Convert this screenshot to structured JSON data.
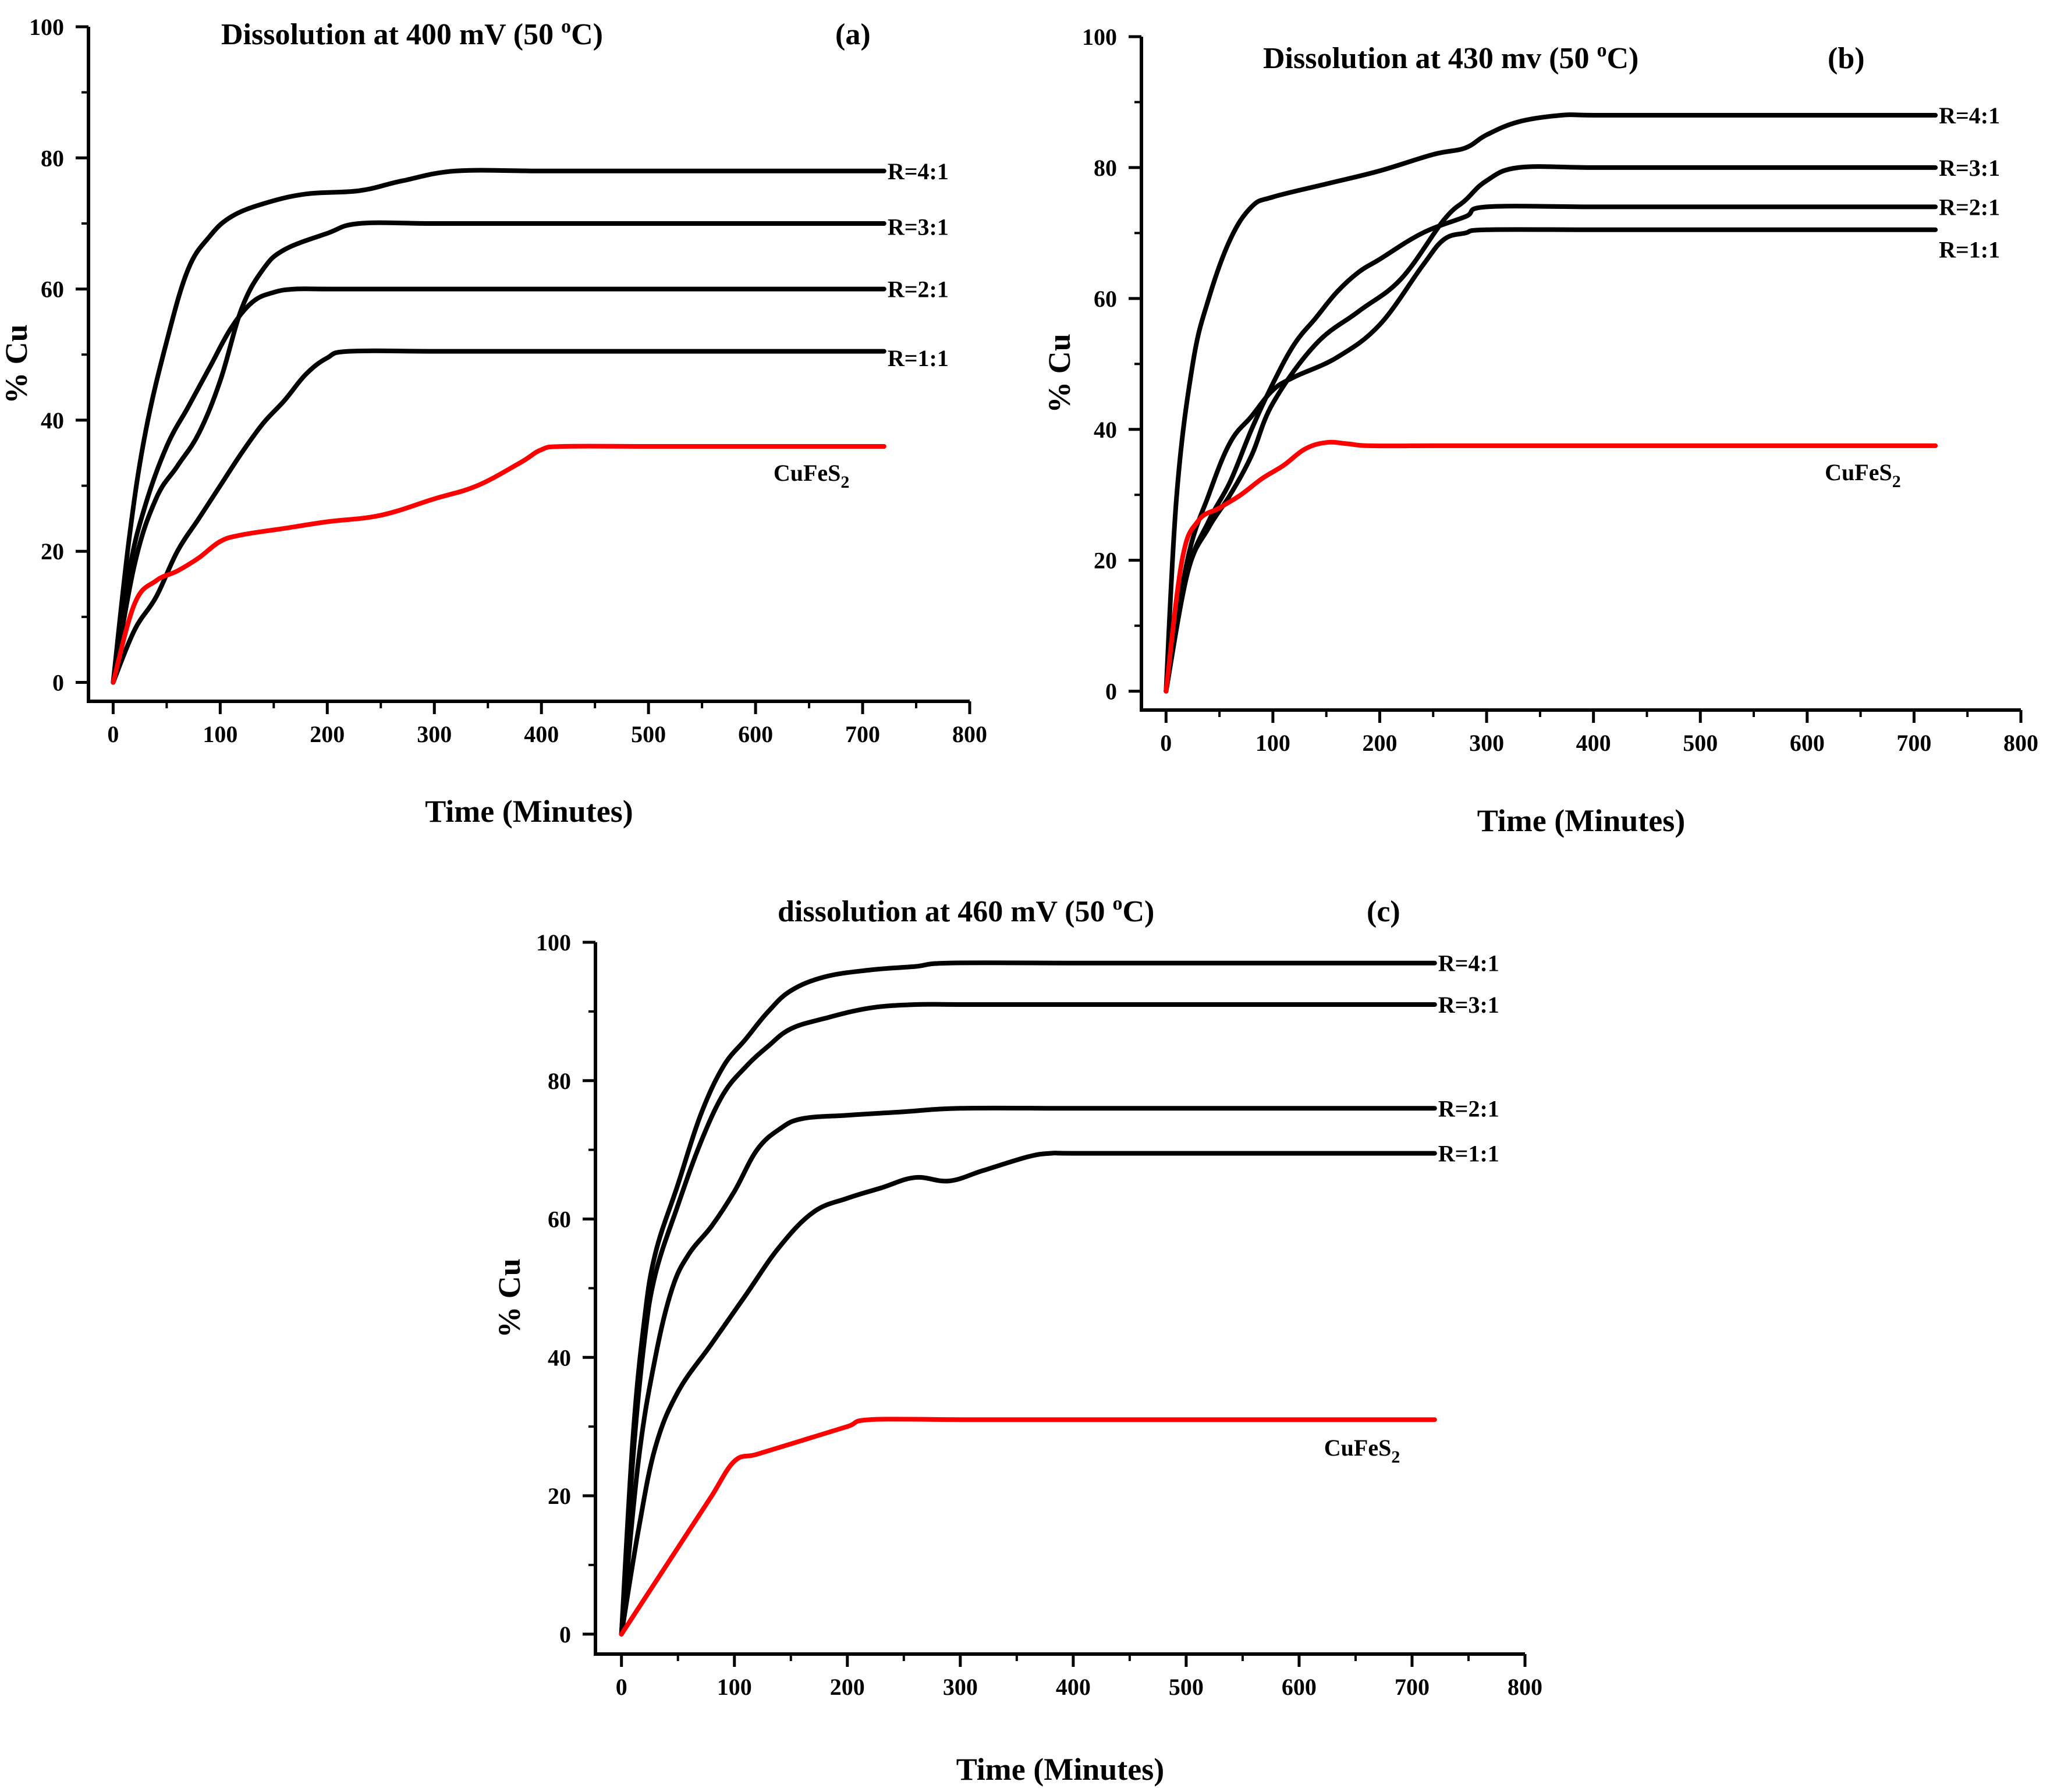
{
  "chart_data": [
    {
      "type": "line",
      "panel_label": "(a)",
      "title": "Dissolution at 400 mV (50",
      "title_sup": "o",
      "title_tail": "C)",
      "xlabel": "Time (Minutes)",
      "ylabel": "% Cu",
      "xlim": [
        0,
        800
      ],
      "ylim": [
        0,
        100
      ],
      "xticks": [
        0,
        100,
        200,
        300,
        400,
        500,
        600,
        700,
        800
      ],
      "yticks": [
        0,
        20,
        40,
        60,
        80,
        100
      ],
      "grid": false,
      "series": [
        {
          "name": "R=4:1",
          "color": "#000000",
          "x": [
            0,
            15,
            30,
            50,
            70,
            90,
            110,
            140,
            180,
            230,
            270,
            320,
            400,
            500,
            600,
            720
          ],
          "y": [
            0,
            22,
            38,
            52,
            63,
            68,
            71,
            73,
            74.5,
            75,
            76.5,
            78,
            78,
            78,
            78,
            78
          ]
        },
        {
          "name": "R=3:1",
          "color": "#000000",
          "x": [
            0,
            20,
            40,
            60,
            80,
            100,
            120,
            140,
            160,
            200,
            230,
            300,
            400,
            500,
            600,
            720
          ],
          "y": [
            0,
            18,
            28,
            33,
            38,
            46,
            57,
            63,
            66,
            68.5,
            70,
            70,
            70,
            70,
            70,
            70
          ],
          "label_y": 69.5
        },
        {
          "name": "R=2:1",
          "color": "#000000",
          "x": [
            0,
            15,
            30,
            50,
            70,
            90,
            110,
            130,
            150,
            170,
            200,
            300,
            400,
            500,
            600,
            720
          ],
          "y": [
            0,
            17,
            27,
            36,
            42,
            48,
            54,
            58,
            59.5,
            60,
            60,
            60,
            60,
            60,
            60,
            60
          ]
        },
        {
          "name": "R=1:1",
          "color": "#000000",
          "x": [
            0,
            20,
            40,
            60,
            80,
            100,
            120,
            140,
            160,
            180,
            200,
            220,
            300,
            400,
            500,
            600,
            720
          ],
          "y": [
            0,
            8,
            13,
            20,
            25,
            30,
            35,
            39.5,
            43,
            47,
            49.5,
            50.5,
            50.5,
            50.5,
            50.5,
            50.5,
            50.5
          ],
          "label_y": 49.5
        },
        {
          "name": "CuFeS",
          "name_sub": "2",
          "color": "#ff0000",
          "x": [
            0,
            20,
            40,
            60,
            80,
            100,
            120,
            160,
            200,
            250,
            300,
            340,
            380,
            400,
            420,
            500,
            600,
            720
          ],
          "y": [
            0,
            12,
            15.5,
            17,
            19,
            21.5,
            22.5,
            23.5,
            24.5,
            25.5,
            28,
            30,
            33.5,
            35.5,
            36,
            36,
            36,
            36
          ],
          "label_y": 32
        }
      ]
    },
    {
      "type": "line",
      "panel_label": "(b)",
      "title": "Dissolution at 430 mv (50",
      "title_sup": "o",
      "title_tail": "C)",
      "xlabel": "Time (Minutes)",
      "ylabel": "% Cu",
      "xlim": [
        0,
        800
      ],
      "ylim": [
        0,
        100
      ],
      "xticks": [
        0,
        100,
        200,
        300,
        400,
        500,
        600,
        700,
        800
      ],
      "yticks": [
        0,
        20,
        40,
        60,
        80,
        100
      ],
      "grid": false,
      "series": [
        {
          "name": "R=4:1",
          "color": "#000000",
          "x": [
            0,
            10,
            25,
            40,
            60,
            80,
            100,
            150,
            200,
            250,
            280,
            300,
            330,
            370,
            400,
            500,
            600,
            720
          ],
          "y": [
            0,
            30,
            50,
            60,
            69,
            74,
            75.5,
            77.5,
            79.5,
            82,
            83,
            85,
            87,
            88,
            88,
            88,
            88,
            88
          ]
        },
        {
          "name": "R=3:1",
          "color": "#000000",
          "x": [
            0,
            20,
            40,
            60,
            80,
            100,
            140,
            180,
            220,
            260,
            280,
            300,
            330,
            400,
            500,
            600,
            720
          ],
          "y": [
            0,
            18,
            25,
            30,
            36,
            44,
            53,
            58,
            63,
            72,
            75,
            78,
            80,
            80,
            80,
            80,
            80
          ]
        },
        {
          "name": "R=2:1",
          "color": "#000000",
          "x": [
            0,
            20,
            40,
            60,
            80,
            100,
            120,
            140,
            160,
            180,
            200,
            240,
            280,
            300,
            400,
            500,
            600,
            720
          ],
          "y": [
            0,
            18,
            26,
            32,
            40,
            47,
            53,
            57,
            61,
            64,
            66,
            70,
            72.5,
            74,
            74,
            74,
            74,
            74
          ]
        },
        {
          "name": "R=1:1",
          "color": "#000000",
          "x": [
            0,
            20,
            40,
            60,
            80,
            100,
            120,
            160,
            200,
            240,
            260,
            280,
            300,
            400,
            500,
            600,
            720
          ],
          "y": [
            0,
            20,
            30,
            38,
            42,
            46,
            48,
            51,
            56,
            65,
            69,
            70,
            70.5,
            70.5,
            70.5,
            70.5,
            70.5
          ],
          "label_y": 67.5
        },
        {
          "name": "CuFeS",
          "name_sub": "2",
          "color": "#ff0000",
          "x": [
            0,
            15,
            30,
            50,
            70,
            90,
            110,
            130,
            150,
            170,
            190,
            250,
            300,
            400,
            500,
            600,
            720
          ],
          "y": [
            0,
            20,
            26,
            28,
            30,
            32.5,
            34.5,
            37,
            38,
            37.8,
            37.5,
            37.5,
            37.5,
            37.5,
            37.5,
            37.5,
            37.5
          ],
          "label_y": 33.5
        }
      ]
    },
    {
      "type": "line",
      "panel_label": "(c)",
      "title": "dissolution at 460 mV (50",
      "title_sup": "o",
      "title_tail": "C)",
      "xlabel": "Time (Minutes)",
      "ylabel": "% Cu",
      "xlim": [
        0,
        800
      ],
      "ylim": [
        0,
        100
      ],
      "xticks": [
        0,
        100,
        200,
        300,
        400,
        500,
        600,
        700,
        800
      ],
      "yticks": [
        0,
        20,
        40,
        60,
        80,
        100
      ],
      "grid": false,
      "series": [
        {
          "name": "R=4:1",
          "color": "#000000",
          "x": [
            0,
            10,
            20,
            30,
            50,
            70,
            90,
            110,
            130,
            150,
            180,
            220,
            260,
            290,
            400,
            500,
            600,
            720
          ],
          "y": [
            0,
            28,
            45,
            55,
            65,
            75,
            82,
            86,
            90,
            93,
            95,
            96,
            96.5,
            97,
            97,
            97,
            97,
            97
          ]
        },
        {
          "name": "R=3:1",
          "color": "#000000",
          "x": [
            0,
            10,
            20,
            30,
            50,
            70,
            90,
            110,
            130,
            150,
            180,
            220,
            260,
            300,
            400,
            500,
            600,
            720
          ],
          "y": [
            0,
            25,
            42,
            52,
            62,
            71,
            78,
            82,
            85,
            87.5,
            89,
            90.5,
            91,
            91,
            91,
            91,
            91,
            91
          ]
        },
        {
          "name": "R=2:1",
          "color": "#000000",
          "x": [
            0,
            15,
            30,
            45,
            60,
            80,
            100,
            120,
            140,
            160,
            200,
            250,
            300,
            400,
            500,
            600,
            720
          ],
          "y": [
            0,
            25,
            40,
            50,
            55,
            59,
            64,
            70,
            73,
            74.5,
            75,
            75.5,
            76,
            76,
            76,
            76,
            76
          ]
        },
        {
          "name": "R=1:1",
          "color": "#000000",
          "x": [
            0,
            15,
            30,
            50,
            80,
            110,
            140,
            170,
            200,
            230,
            260,
            290,
            320,
            360,
            380,
            400,
            500,
            600,
            720
          ],
          "y": [
            0,
            15,
            27,
            35,
            42,
            49,
            56,
            61,
            63,
            64.5,
            66,
            65.5,
            67,
            69,
            69.5,
            69.5,
            69.5,
            69.5,
            69.5
          ]
        },
        {
          "name": "CuFeS",
          "name_sub": "2",
          "color": "#ff0000",
          "x": [
            0,
            20,
            40,
            60,
            80,
            100,
            120,
            160,
            200,
            220,
            300,
            400,
            500,
            600,
            720
          ],
          "y": [
            0,
            5,
            10,
            15,
            20,
            25,
            26,
            28,
            30,
            31,
            31,
            31,
            31,
            31,
            31
          ],
          "label_y": 27
        }
      ]
    }
  ]
}
